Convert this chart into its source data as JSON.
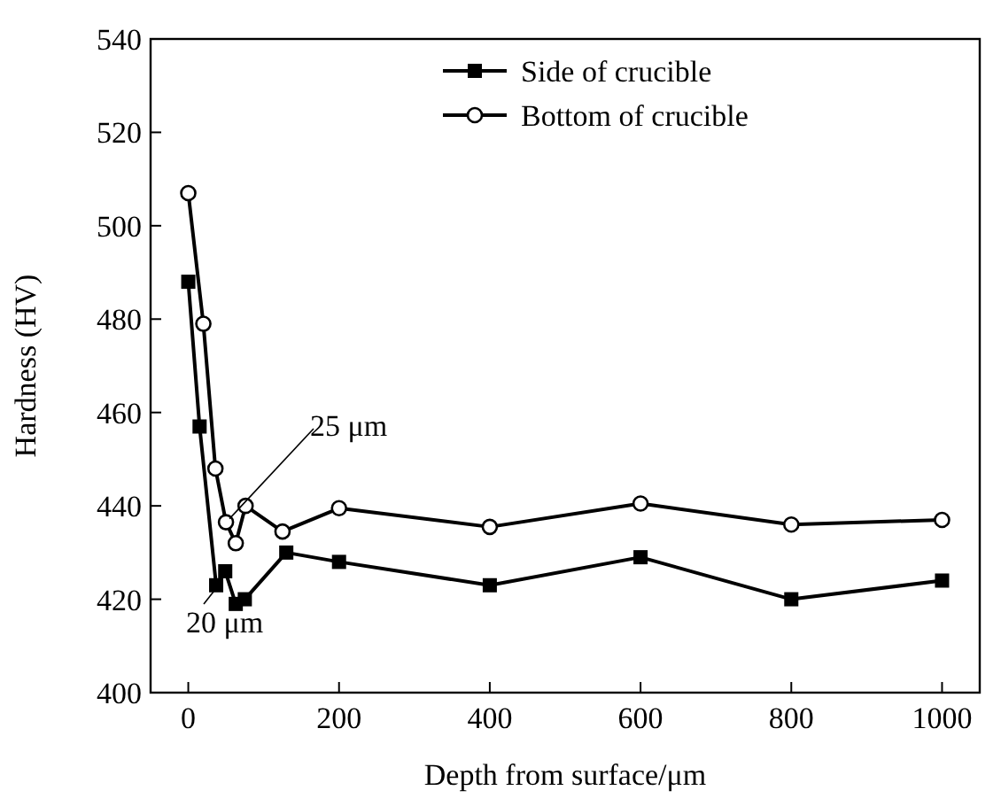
{
  "chart_data": {
    "type": "line",
    "xlabel": "Depth from surface/μm",
    "ylabel": "Hardness (HV)",
    "xlim": [
      -50,
      1050
    ],
    "xticks": [
      0,
      200,
      400,
      600,
      800,
      1000
    ],
    "ylim": [
      400,
      540
    ],
    "yticks": [
      400,
      420,
      440,
      460,
      480,
      500,
      520,
      540
    ],
    "grid": false,
    "legend": "top right",
    "line_style": "solid",
    "series": [
      {
        "name": "Side of crucible",
        "color": "#000000",
        "marker": "square",
        "x": [
          0,
          15,
          37,
          49,
          63,
          75,
          130,
          200,
          400,
          600,
          800,
          1000
        ],
        "values": [
          488,
          457,
          423,
          426,
          419,
          420,
          430,
          428,
          423,
          429,
          420,
          424
        ]
      },
      {
        "name": "Bottom of crucible",
        "color": "#000000",
        "marker": "circle",
        "x": [
          0,
          20,
          36,
          50,
          63,
          76,
          125,
          200,
          400,
          600,
          800,
          1000
        ],
        "values": [
          507,
          479,
          448,
          436.5,
          432,
          440,
          434.5,
          439.5,
          435.5,
          440.5,
          436,
          437
        ]
      }
    ],
    "annotations": [
      {
        "text": "25 μm",
        "x": 50,
        "y": 436.5
      },
      {
        "text": "20 μm",
        "x": 37,
        "y": 423
      }
    ]
  }
}
